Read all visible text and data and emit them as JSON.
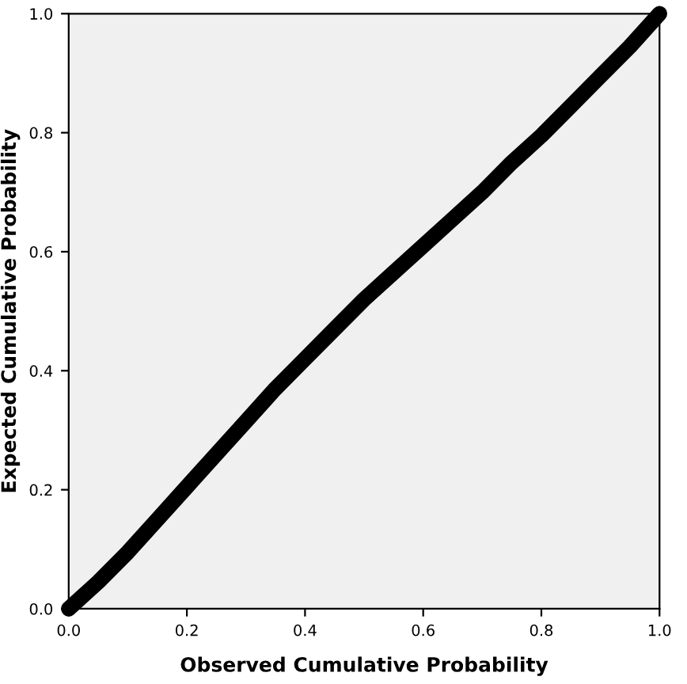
{
  "chart_data": {
    "type": "line",
    "xlabel": "Observed Cumulative Probability",
    "ylabel": "Expected Cumulative Probability",
    "x": [
      0,
      0.05,
      0.1,
      0.15,
      0.2,
      0.25,
      0.3,
      0.35,
      0.4,
      0.45,
      0.5,
      0.55,
      0.6,
      0.65,
      0.7,
      0.75,
      0.8,
      0.85,
      0.9,
      0.95,
      1.0
    ],
    "series": [
      {
        "color": "#000000",
        "values": [
          0.0,
          0.045,
          0.095,
          0.15,
          0.205,
          0.26,
          0.315,
          0.37,
          0.42,
          0.47,
          0.52,
          0.565,
          0.61,
          0.655,
          0.7,
          0.75,
          0.795,
          0.845,
          0.895,
          0.945,
          1.0
        ]
      }
    ],
    "xlim": [
      0,
      1
    ],
    "ylim": [
      0,
      1
    ],
    "xticks": [
      {
        "value": 0,
        "label": "0.0"
      },
      {
        "value": 0.2,
        "label": "0.2"
      },
      {
        "value": 0.4,
        "label": "0.4"
      },
      {
        "value": 0.6,
        "label": "0.6"
      },
      {
        "value": 0.8,
        "label": "0.8"
      },
      {
        "value": 1,
        "label": "1.0"
      }
    ],
    "yticks": [
      {
        "value": 0,
        "label": "0.0"
      },
      {
        "value": 0.2,
        "label": "0.2"
      },
      {
        "value": 0.4,
        "label": "0.4"
      },
      {
        "value": 0.6,
        "label": "0.6"
      },
      {
        "value": 0.8,
        "label": "0.8"
      },
      {
        "value": 1,
        "label": "1.0"
      }
    ],
    "grid": false
  }
}
